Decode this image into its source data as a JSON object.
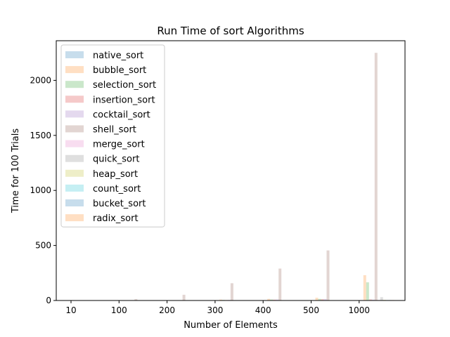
{
  "chart_data": {
    "type": "bar",
    "title": "Run Time of sort Algorithms",
    "xlabel": "Number of Elements",
    "ylabel": "Time for 100 Trials",
    "categories": [
      "10",
      "100",
      "200",
      "300",
      "400",
      "500",
      "1000"
    ],
    "ylim": [
      0,
      2360
    ],
    "yticks": [
      0,
      500,
      1000,
      1500,
      2000
    ],
    "grid": false,
    "legend_position": "upper-left",
    "bar_alpha": 0.25,
    "series": [
      {
        "name": "native_sort",
        "color": "#1f77b4",
        "values": [
          0,
          0,
          0,
          0,
          0,
          0,
          0
        ]
      },
      {
        "name": "bubble_sort",
        "color": "#ff7f0e",
        "values": [
          0,
          1,
          3,
          8,
          15,
          25,
          230
        ]
      },
      {
        "name": "selection_sort",
        "color": "#2ca02c",
        "values": [
          0,
          1,
          2,
          5,
          9,
          15,
          165
        ]
      },
      {
        "name": "insertion_sort",
        "color": "#d62728",
        "values": [
          0,
          1,
          2,
          4,
          8,
          12,
          10
        ]
      },
      {
        "name": "cocktail_sort",
        "color": "#9467bd",
        "values": [
          0,
          1,
          2,
          5,
          9,
          14,
          8
        ]
      },
      {
        "name": "shell_sort",
        "color": "#8c564b",
        "values": [
          0,
          12,
          52,
          157,
          290,
          455,
          2250
        ]
      },
      {
        "name": "merge_sort",
        "color": "#e377c2",
        "values": [
          0,
          0,
          1,
          1,
          2,
          2,
          4
        ]
      },
      {
        "name": "quick_sort",
        "color": "#7f7f7f",
        "values": [
          0,
          0,
          1,
          1,
          2,
          3,
          30
        ]
      },
      {
        "name": "heap_sort",
        "color": "#bcbd22",
        "values": [
          0,
          0,
          1,
          1,
          2,
          3,
          6
        ]
      },
      {
        "name": "count_sort",
        "color": "#17becf",
        "values": [
          0,
          0,
          1,
          1,
          1,
          2,
          4
        ]
      },
      {
        "name": "bucket_sort",
        "color": "#1f77b4",
        "values": [
          0,
          0,
          1,
          1,
          1,
          2,
          4
        ]
      },
      {
        "name": "radix_sort",
        "color": "#ff7f0e",
        "values": [
          0,
          0,
          1,
          1,
          1,
          2,
          4
        ]
      }
    ]
  }
}
